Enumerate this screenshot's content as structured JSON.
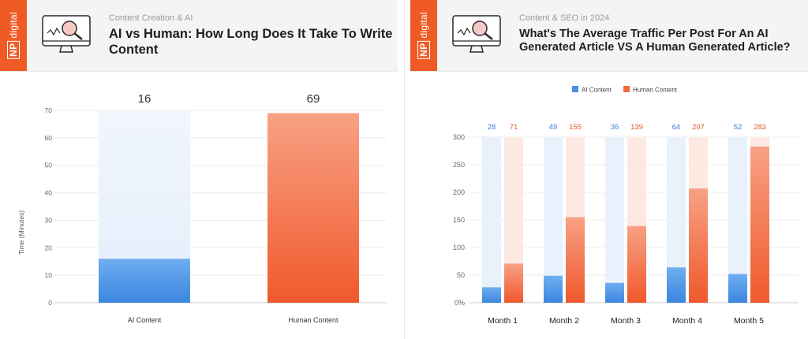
{
  "left": {
    "brand": {
      "np": "NP",
      "text": "digital"
    },
    "subtitle": "Content Creation & AI",
    "title": "AI vs Human: How Long Does It Take To Write Content",
    "chart_data": {
      "type": "bar",
      "categories": [
        "AI Content",
        "Human Content"
      ],
      "values": [
        16,
        69
      ],
      "title": "",
      "xlabel": "",
      "ylabel": "Time (Minutes)",
      "ylim": [
        0,
        70
      ],
      "yticks": [
        "0",
        "10",
        "20",
        "30",
        "40",
        "50",
        "60",
        "70"
      ],
      "grid": true,
      "colors": [
        "#4a90e2",
        "#f26b3f"
      ]
    }
  },
  "right": {
    "brand": {
      "np": "NP",
      "text": "digital"
    },
    "subtitle": "Content & SEO in 2024",
    "title": "What's The Average Traffic Per Post For An AI Generated Article VS A Human Generated Article?",
    "chart_data": {
      "type": "bar",
      "categories": [
        "Month 1",
        "Month 2",
        "Month 3",
        "Month 4",
        "Month 5"
      ],
      "series": [
        {
          "name": "AI Content",
          "values": [
            28,
            49,
            36,
            64,
            52
          ],
          "color": "#4a90e2"
        },
        {
          "name": "Human Content",
          "values": [
            71,
            155,
            139,
            207,
            283
          ],
          "color": "#f26b3f"
        }
      ],
      "title": "",
      "xlabel": "",
      "ylabel": "",
      "ylim": [
        0,
        300
      ],
      "yticks": [
        "0%",
        "50",
        "100",
        "150",
        "200",
        "250",
        "300"
      ],
      "legend": "top-center",
      "grid": true
    }
  }
}
